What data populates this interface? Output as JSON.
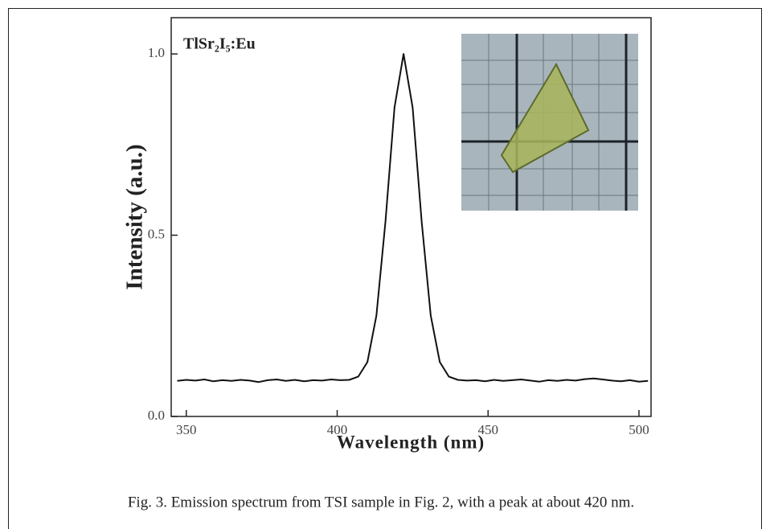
{
  "chart_data": {
    "type": "line",
    "annotation": "TlSr₂I₅:Eu",
    "xlabel": "Wavelength (nm)",
    "ylabel": "Intensity (a.u.)",
    "caption": "Fig. 3. Emission spectrum from TSI sample in Fig. 2, with a peak at about 420 nm.",
    "xlim": [
      345,
      504
    ],
    "ylim": [
      0,
      1.1
    ],
    "xticks": [
      350,
      400,
      450,
      500
    ],
    "yticks": [
      {
        "value": 0,
        "label": "0.0"
      },
      {
        "value": 0.5,
        "label": "0.5"
      },
      {
        "value": 1,
        "label": "1.0"
      }
    ],
    "x": [
      347,
      350,
      353,
      356,
      359,
      362,
      365,
      368,
      371,
      374,
      377,
      380,
      383,
      386,
      389,
      392,
      395,
      398,
      401,
      404,
      407,
      410,
      413,
      416,
      419,
      422,
      425,
      428,
      431,
      434,
      437,
      440,
      443,
      446,
      449,
      452,
      455,
      458,
      461,
      464,
      467,
      470,
      473,
      476,
      479,
      482,
      485,
      488,
      491,
      494,
      497,
      500,
      503
    ],
    "series": [
      {
        "color": "#111111",
        "values": [
          0.098,
          0.101,
          0.099,
          0.102,
          0.097,
          0.1,
          0.098,
          0.101,
          0.099,
          0.095,
          0.1,
          0.102,
          0.098,
          0.101,
          0.097,
          0.1,
          0.099,
          0.102,
          0.1,
          0.101,
          0.11,
          0.15,
          0.278,
          0.538,
          0.852,
          1.0,
          0.852,
          0.538,
          0.278,
          0.15,
          0.11,
          0.101,
          0.099,
          0.1,
          0.097,
          0.101,
          0.098,
          0.1,
          0.102,
          0.099,
          0.096,
          0.1,
          0.098,
          0.101,
          0.099,
          0.103,
          0.105,
          0.102,
          0.099,
          0.097,
          0.1,
          0.096,
          0.098
        ]
      }
    ]
  }
}
